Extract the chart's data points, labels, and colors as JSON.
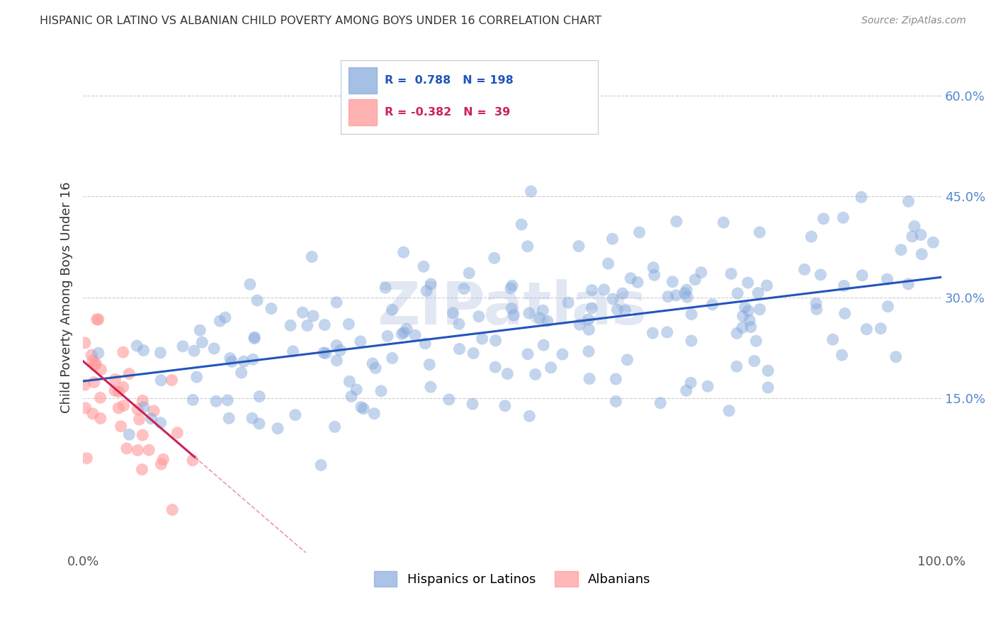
{
  "title": "HISPANIC OR LATINO VS ALBANIAN CHILD POVERTY AMONG BOYS UNDER 16 CORRELATION CHART",
  "source": "Source: ZipAtlas.com",
  "ylabel": "Child Poverty Among Boys Under 16",
  "xlim": [
    0,
    1.0
  ],
  "ylim": [
    -0.08,
    0.68
  ],
  "ytick_vals": [
    0.15,
    0.3,
    0.45,
    0.6
  ],
  "ytick_labels": [
    "15.0%",
    "30.0%",
    "45.0%",
    "60.0%"
  ],
  "xtick_vals": [
    0.0,
    0.25,
    0.5,
    0.75,
    1.0
  ],
  "xtick_labels": [
    "0.0%",
    "",
    "",
    "",
    "100.0%"
  ],
  "blue_color": "#88AADD",
  "pink_color": "#FF9999",
  "blue_line_color": "#2255BB",
  "pink_line_color": "#CC2255",
  "background_color": "#FFFFFF",
  "watermark": "ZIPatlas",
  "blue_n": 198,
  "pink_n": 39,
  "blue_intercept": 0.175,
  "blue_slope": 0.155,
  "pink_intercept": 0.205,
  "pink_slope": -1.1
}
